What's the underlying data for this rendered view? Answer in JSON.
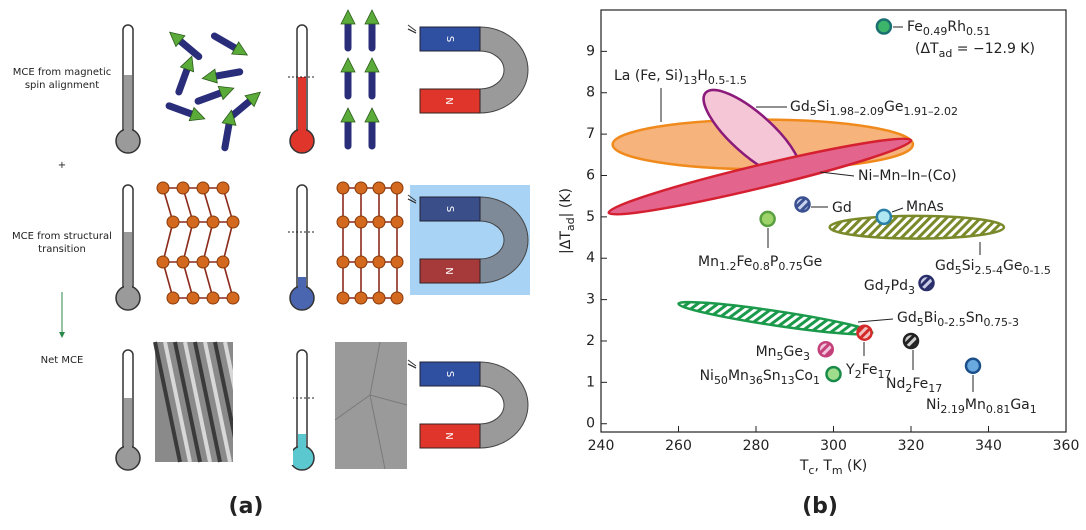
{
  "panel_a": {
    "label": "(a)",
    "rows": [
      {
        "text": [
          "MCE from magnetic",
          "spin alignment"
        ]
      },
      {
        "text": [
          "MCE from structural",
          "transition"
        ]
      },
      {
        "text": [
          "Net MCE"
        ]
      }
    ],
    "plus": "+",
    "magnet": {
      "south": "S",
      "north": "N"
    }
  },
  "chart_data": {
    "type": "scatter",
    "panel_label": "(b)",
    "x_label": [
      "T",
      "c",
      ", T",
      "m",
      " (K)"
    ],
    "y_label": [
      "|ΔT",
      "ad",
      "| (K)"
    ],
    "xlim": [
      240,
      360
    ],
    "xticks": [
      240,
      260,
      280,
      300,
      320,
      340,
      360
    ],
    "ylim": [
      -0.2,
      10
    ],
    "yticks": [
      0,
      1,
      2,
      3,
      4,
      5,
      6,
      7,
      8,
      9
    ],
    "regions": [
      {
        "label": [
          "La (Fe, Si)",
          "13",
          "H",
          "0.5-1.5"
        ],
        "x": [
          243,
          320.5
        ],
        "y": [
          6.75,
          6.75
        ],
        "width": 1.2,
        "fill": "#f6b47c",
        "edge": "#f08a1c",
        "hatch": false
      },
      {
        "label": [
          "Gd",
          "5",
          "Si",
          "1.98–2.09",
          "Ge",
          "1.91–2.02"
        ],
        "x": [
          267,
          291
        ],
        "y": [
          8.0,
          6.0
        ],
        "width": 1.0,
        "fill": "#f5c6d6",
        "edge": "#8b1a7a",
        "hatch": false
      },
      {
        "label": [
          "Ni–Mn–In–(Co)"
        ],
        "x": [
          242,
          320
        ],
        "y": [
          5.1,
          6.85
        ],
        "width": 0.55,
        "fill": "#e3658e",
        "edge": "#d42030",
        "hatch": false
      },
      {
        "label": [
          "Gd",
          "5",
          "Si",
          "2.5-4",
          "Ge",
          "0-1.5"
        ],
        "x": [
          299,
          344
        ],
        "y": [
          4.75,
          4.75
        ],
        "width": 0.55,
        "fill": "#ffffff",
        "edge": "#7a8a2a",
        "hatch": true
      },
      {
        "label": [
          "Gd",
          "5",
          "Bi",
          "0-2.5",
          "Sn",
          "0.75-3"
        ],
        "x": [
          260,
          310
        ],
        "y": [
          2.9,
          2.2
        ],
        "width": 0.35,
        "fill": "#ffffff",
        "edge": "#1a9a4a",
        "hatch": true
      }
    ],
    "points": [
      {
        "label": [
          "Fe",
          "0.49",
          "Rh",
          "0.51"
        ],
        "note": [
          "(ΔT",
          "ad",
          " = −12.9 K)"
        ],
        "x": 313,
        "y": 9.6,
        "fill": "#3cb56a",
        "edge": "#1a6f70",
        "hatch": false
      },
      {
        "label": [
          "Gd"
        ],
        "x": 292,
        "y": 5.3,
        "fill": "#c9d2ee",
        "edge": "#3a5090",
        "hatch": true
      },
      {
        "label": [
          "MnAs"
        ],
        "x": 313,
        "y": 5.0,
        "fill": "#aee6f2",
        "edge": "#2a7fa8",
        "hatch": false
      },
      {
        "label": [
          "Mn",
          "1.2",
          "Fe",
          "0.8",
          "P",
          "0.75",
          "Ge"
        ],
        "x": 283,
        "y": 4.95,
        "fill": "#9ed36a",
        "edge": "#5aa040",
        "hatch": false
      },
      {
        "label": [
          "Gd",
          "7",
          "Pd",
          "3"
        ],
        "x": 324,
        "y": 3.4,
        "fill": "#c7cbe6",
        "edge": "#2a2e6a",
        "hatch": true
      },
      {
        "label": [
          "Y",
          "2",
          "Fe",
          "17"
        ],
        "x": 308,
        "y": 2.2,
        "fill": "#f3c0c0",
        "edge": "#d42a2a",
        "hatch": true
      },
      {
        "label": [
          "Nd",
          "2",
          "Fe",
          "17"
        ],
        "x": 320,
        "y": 2.0,
        "fill": "#cfcfcf",
        "edge": "#222222",
        "hatch": true
      },
      {
        "label": [
          "Mn",
          "5",
          "Ge",
          "3"
        ],
        "x": 298,
        "y": 1.8,
        "fill": "#f3c3dc",
        "edge": "#c4407a",
        "hatch": true
      },
      {
        "label": [
          "Ni",
          "50",
          "Mn",
          "36",
          "Sn",
          "13",
          "Co",
          "1"
        ],
        "x": 300,
        "y": 1.2,
        "fill": "#9fdc8c",
        "edge": "#1a8a4a",
        "hatch": false
      },
      {
        "label": [
          "Ni",
          "2.19",
          "Mn",
          "0.81",
          "Ga",
          "1"
        ],
        "x": 336,
        "y": 1.4,
        "fill": "#6aa8e0",
        "edge": "#1a4f8a",
        "hatch": false
      }
    ]
  }
}
